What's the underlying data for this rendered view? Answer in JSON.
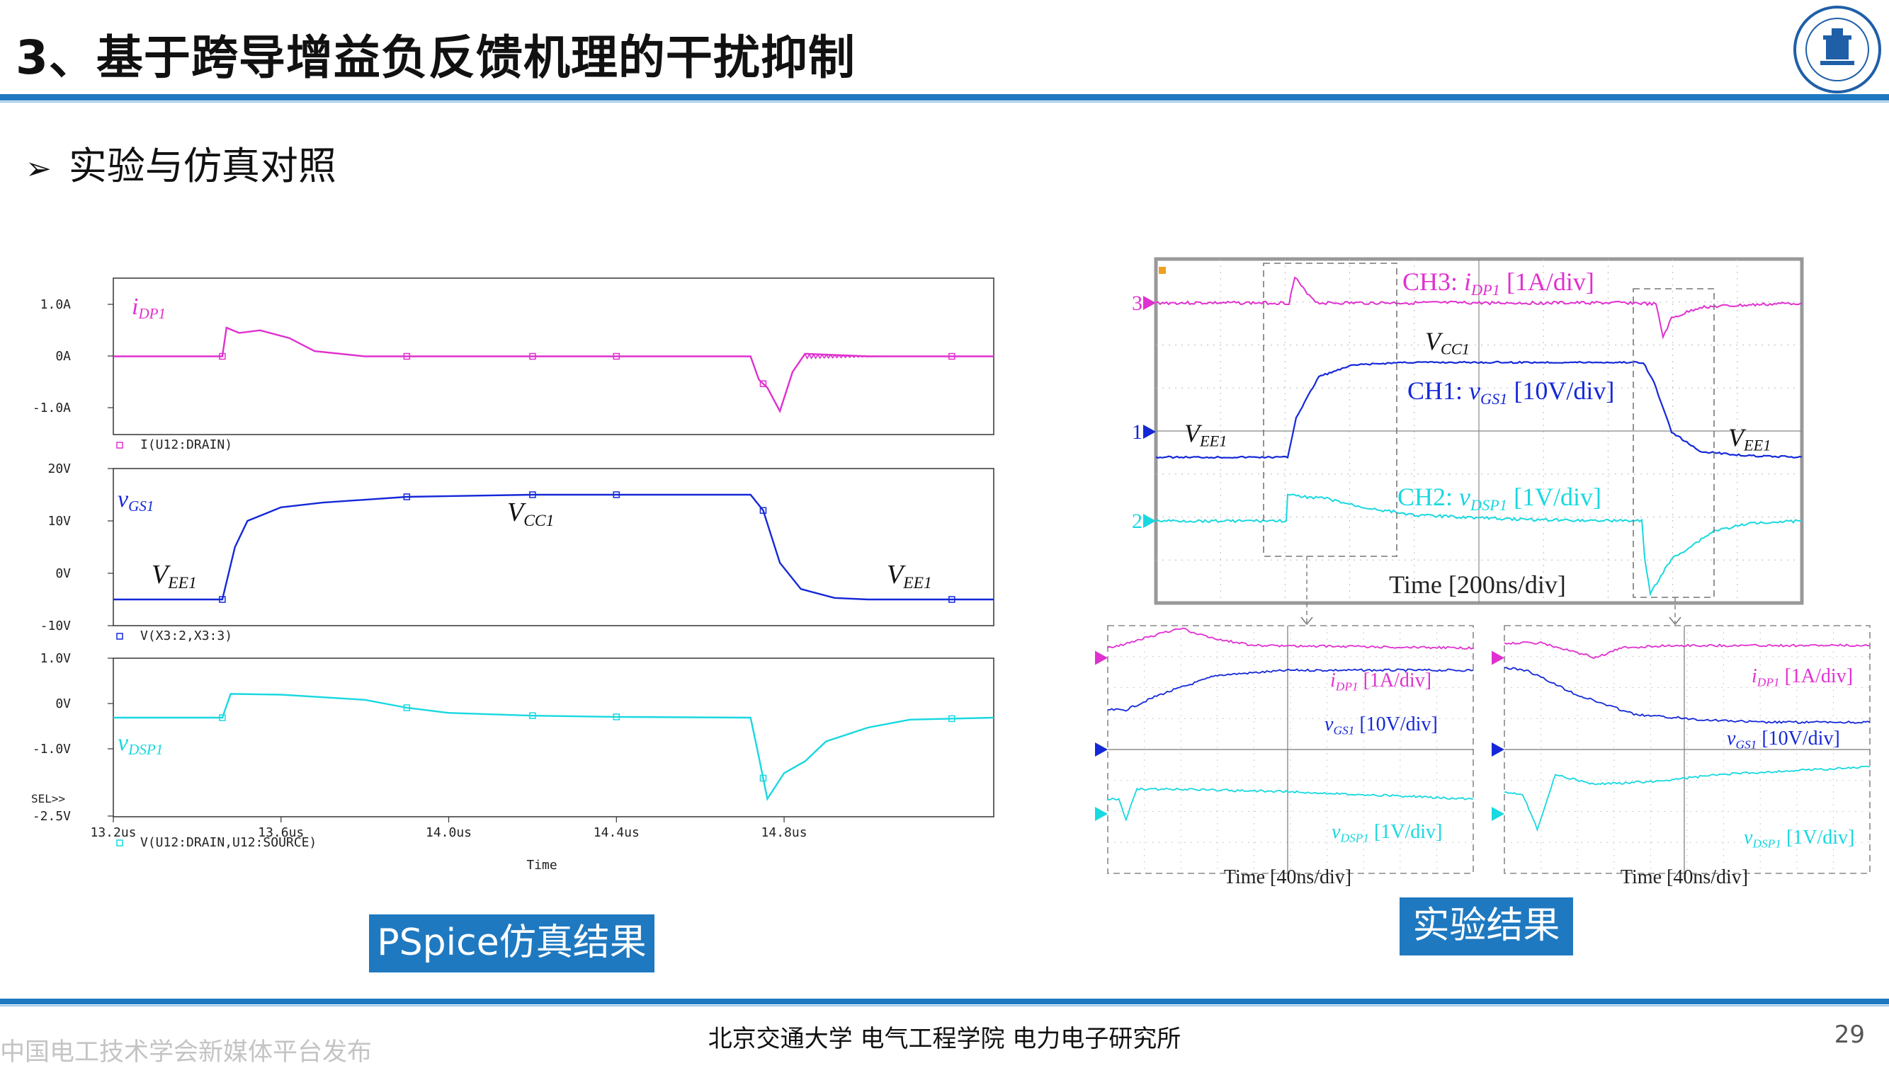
{
  "header": {
    "title": "3、基于跨导增益负反馈机理的干扰抑制"
  },
  "bullet": {
    "text": "实验与仿真对照"
  },
  "labels": {
    "pspice": "PSpice仿真结果",
    "experiment": "实验结果"
  },
  "footer": {
    "text": "北京交通大学  电气工程学院  电力电子研究所",
    "page": "29",
    "watermark": "中国电工技术学会新媒体平台发布"
  },
  "colors": {
    "magenta": "#e030d0",
    "blue": "#1428d8",
    "cyan": "#18d8e0",
    "accent": "#1f79c0"
  },
  "chart_data": [
    {
      "type": "line",
      "panel": "PSpice current",
      "series": [
        {
          "name": "I(U12:DRAIN)",
          "label": "iDP1",
          "x": [
            13.2,
            13.46,
            13.47,
            13.5,
            13.55,
            13.62,
            13.68,
            13.8,
            14.0,
            14.4,
            14.72,
            14.74,
            14.76,
            14.79,
            14.82,
            14.85,
            15.0,
            15.3
          ],
          "y": [
            0,
            0,
            0.55,
            0.45,
            0.5,
            0.35,
            0.1,
            0,
            0,
            0,
            0,
            -0.45,
            -0.6,
            -1.05,
            -0.3,
            0.05,
            0,
            0
          ]
        }
      ],
      "xlim": [
        13.2,
        15.3
      ],
      "ylim": [
        -1.5,
        1.5
      ],
      "yticks": [
        "1.0A",
        "0A",
        "-1.0A"
      ],
      "xlabel": "",
      "ylabel": ""
    },
    {
      "type": "line",
      "panel": "PSpice gate voltage",
      "series": [
        {
          "name": "V(X3:2,X3:3)",
          "label": "vGS1",
          "x": [
            13.2,
            13.46,
            13.49,
            13.52,
            13.6,
            13.7,
            13.9,
            14.2,
            14.5,
            14.72,
            14.75,
            14.79,
            14.84,
            14.92,
            15.0,
            15.3
          ],
          "y": [
            -5,
            -5,
            5,
            10,
            12.6,
            13.5,
            14.6,
            15,
            15,
            15,
            12,
            2,
            -3,
            -4.7,
            -5,
            -5
          ]
        }
      ],
      "annotations": [
        "VCC1",
        "VEE1",
        "VEE1"
      ],
      "xlim": [
        13.2,
        15.3
      ],
      "ylim": [
        -10,
        20
      ],
      "yticks": [
        "20V",
        "10V",
        "0V",
        "-10V"
      ]
    },
    {
      "type": "line",
      "panel": "PSpice drain-source voltage",
      "series": [
        {
          "name": "V(U12:DRAIN,U12:SOURCE)",
          "label": "vDSP1",
          "x": [
            13.2,
            13.46,
            13.48,
            13.6,
            13.8,
            13.9,
            14.0,
            14.2,
            14.4,
            14.72,
            14.74,
            14.76,
            14.8,
            14.85,
            14.9,
            15.0,
            15.1,
            15.3
          ],
          "y": [
            0,
            0,
            0.6,
            0.58,
            0.45,
            0.25,
            0.12,
            0.05,
            0.02,
            0,
            -1.0,
            -2.05,
            -1.4,
            -1.1,
            -0.6,
            -0.25,
            -0.05,
            0
          ]
        }
      ],
      "xlim": [
        13.2,
        15.3
      ],
      "ylim": [
        -2.5,
        1.5
      ],
      "yticks": [
        "1.0V",
        "0V",
        "-1.0V",
        "-2.5V"
      ],
      "xticks": [
        "13.2us",
        "13.6us",
        "14.0us",
        "14.4us",
        "14.8us"
      ],
      "xlabel": "Time",
      "misc": "SEL>>"
    },
    {
      "type": "line",
      "panel": "Oscilloscope main",
      "series": [
        {
          "name": "CH3: iDP1 [1A/div]",
          "marker": "3"
        },
        {
          "name": "CH1: vGS1 [10V/div]",
          "marker": "1"
        },
        {
          "name": "CH2: vDSP1 [1V/div]",
          "marker": "2"
        }
      ],
      "annotations": [
        "VCC1",
        "VEE1",
        "VEE1"
      ],
      "xlabel": "Time [200ns/div]"
    },
    {
      "type": "line",
      "panel": "Oscilloscope zoom turn-on",
      "series": [
        {
          "name": "iDP1 [1A/div]"
        },
        {
          "name": "vGS1 [10V/div]"
        },
        {
          "name": "vDSP1 [1V/div]"
        }
      ],
      "xlabel": "Time [40ns/div]"
    },
    {
      "type": "line",
      "panel": "Oscilloscope zoom turn-off",
      "series": [
        {
          "name": "iDP1 [1A/div]"
        },
        {
          "name": "vGS1 [10V/div]"
        },
        {
          "name": "vDSP1 [1V/div]"
        }
      ],
      "xlabel": "Time [40ns/div]"
    }
  ]
}
